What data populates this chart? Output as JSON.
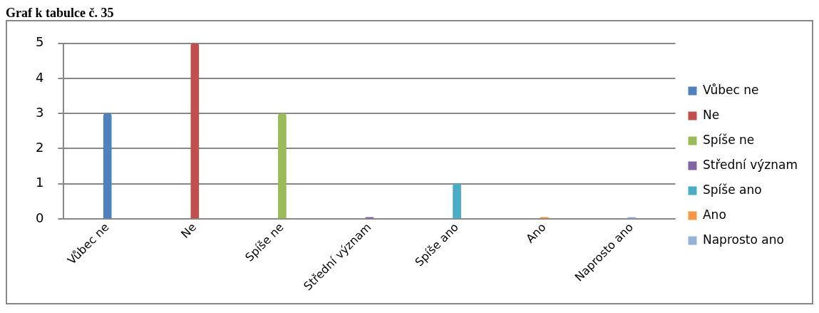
{
  "chart_data": {
    "type": "bar",
    "title": "Graf k tabulce č. 35",
    "categories": [
      "Vůbec ne",
      "Ne",
      "Spíše ne",
      "Střední význam",
      "Spíše ano",
      "Ano",
      "Naprosto ano"
    ],
    "series": [
      {
        "name": "Vůbec ne",
        "color": "#4f81bd",
        "values": [
          3,
          null,
          null,
          null,
          null,
          null,
          null
        ]
      },
      {
        "name": "Ne",
        "color": "#c0504d",
        "values": [
          null,
          5,
          null,
          null,
          null,
          null,
          null
        ]
      },
      {
        "name": "Spíše ne",
        "color": "#9bbb59",
        "values": [
          null,
          null,
          3,
          null,
          null,
          null,
          null
        ]
      },
      {
        "name": "Střední význam",
        "color": "#8064a2",
        "values": [
          null,
          null,
          null,
          0,
          null,
          null,
          null
        ]
      },
      {
        "name": "Spíše ano",
        "color": "#4bacc6",
        "values": [
          null,
          null,
          null,
          null,
          1,
          null,
          null
        ]
      },
      {
        "name": "Ano",
        "color": "#f79646",
        "values": [
          null,
          null,
          null,
          null,
          null,
          0,
          null
        ]
      },
      {
        "name": "Naprosto ano",
        "color": "#95b3d7",
        "values": [
          null,
          null,
          null,
          null,
          null,
          null,
          0
        ]
      }
    ],
    "ylim": [
      0,
      5
    ],
    "yticks": [
      0,
      1,
      2,
      3,
      4,
      5
    ],
    "grid": "y",
    "legend": "right"
  }
}
